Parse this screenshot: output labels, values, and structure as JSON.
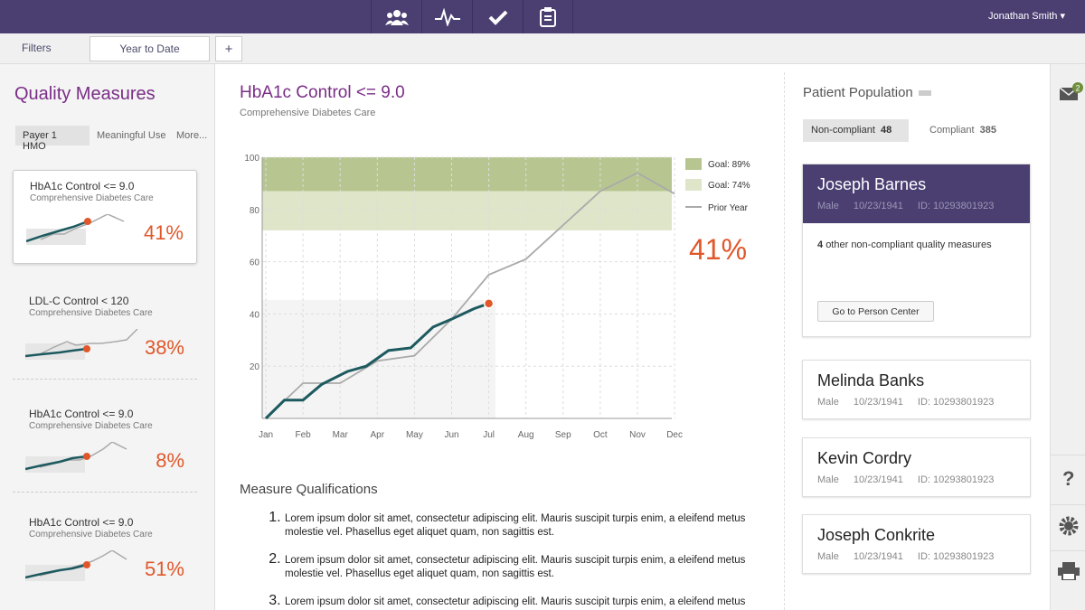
{
  "header": {
    "user": "Jonathan Smith",
    "badge": "2"
  },
  "toolbar": {
    "filters": "Filters",
    "period": "Year to Date",
    "add": "+"
  },
  "sidebar": {
    "title": "Quality Measures",
    "tabs": [
      "Payer 1 HMO",
      "Meaningful Use",
      "More..."
    ],
    "cards": [
      {
        "title": "HbA1c Control <= 9.0",
        "subtitle": "Comprehensive Diabetes Care",
        "rate": "41%"
      },
      {
        "title": "LDL-C Control < 120",
        "subtitle": "Comprehensive Diabetes Care",
        "rate": "38%"
      },
      {
        "title": "HbA1c Control <= 9.0",
        "subtitle": "Comprehensive Diabetes Care",
        "rate": "8%"
      },
      {
        "title": "HbA1c Control <= 9.0",
        "subtitle": "Comprehensive Diabetes Care",
        "rate": "51%"
      }
    ]
  },
  "measure": {
    "title": "HbA1c Control <= 9.0",
    "subtitle": "Comprehensive Diabetes Care",
    "rate": "41%"
  },
  "chart_data": {
    "type": "line",
    "categories": [
      "Jan",
      "Feb",
      "Mar",
      "Apr",
      "May",
      "Jun",
      "Jul",
      "Aug",
      "Sep",
      "Oct",
      "Nov",
      "Dec"
    ],
    "ylim": [
      0,
      100
    ],
    "yticks": [
      20,
      40,
      60,
      80,
      100
    ],
    "grid": true,
    "goals": [
      {
        "label": "Goal: 89%",
        "color": "#b7c690",
        "from": 87,
        "to": 100
      },
      {
        "label": "Goal: 74%",
        "color": "#dfe5c9",
        "from": 72,
        "to": 87
      }
    ],
    "series": [
      {
        "color": "#1d5a5f",
        "x": [
          0,
          0.5,
          1,
          1.5,
          2.2,
          2.7,
          3.3,
          3.9,
          4.5,
          5,
          5.6,
          6
        ],
        "values": [
          0,
          7,
          7,
          13,
          18,
          20,
          26,
          27,
          35,
          38,
          42,
          44
        ]
      },
      {
        "name": "Prior Year",
        "color": "#aaaaaa",
        "x": [
          0,
          1,
          2,
          3,
          4,
          5,
          6,
          7,
          8,
          9,
          10,
          11
        ],
        "values": [
          0,
          13.5,
          13.5,
          22,
          24,
          38,
          55,
          61,
          74,
          87,
          94,
          86
        ]
      }
    ]
  },
  "qualifications": {
    "title": "Measure Qualifications",
    "items": [
      "Lorem ipsum dolor sit amet, consectetur adipiscing elit. Mauris suscipit turpis enim, a eleifend metus molestie vel. Phasellus eget aliquet quam, non sagittis est.",
      "Lorem ipsum dolor sit amet, consectetur adipiscing elit. Mauris suscipit turpis enim, a eleifend metus molestie vel. Phasellus eget aliquet quam, non sagittis est.",
      "Lorem ipsum dolor sit amet, consectetur adipiscing elit. Mauris suscipit turpis enim, a eleifend metus molestie vel. Phasellus eget aliquet quam, non sagittis est."
    ]
  },
  "population": {
    "title": "Patient Population",
    "tabs": [
      {
        "label": "Non-compliant",
        "count": "48"
      },
      {
        "label": "Compliant",
        "count": "385"
      }
    ],
    "note": {
      "count": "4",
      "text": "other non-compliant quality measures"
    },
    "button": "Go to Person Center",
    "patients": [
      {
        "name": "Joseph Barnes",
        "sex": "Male",
        "dob": "10/23/1941",
        "id": "ID: 10293801923"
      },
      {
        "name": "Melinda Banks",
        "sex": "Male",
        "dob": "10/23/1941",
        "id": "ID: 10293801923"
      },
      {
        "name": "Kevin Cordry",
        "sex": "Male",
        "dob": "10/23/1941",
        "id": "ID: 10293801923"
      },
      {
        "name": "Joseph Conkrite",
        "sex": "Male",
        "dob": "10/23/1941",
        "id": "ID: 10293801923"
      }
    ]
  }
}
